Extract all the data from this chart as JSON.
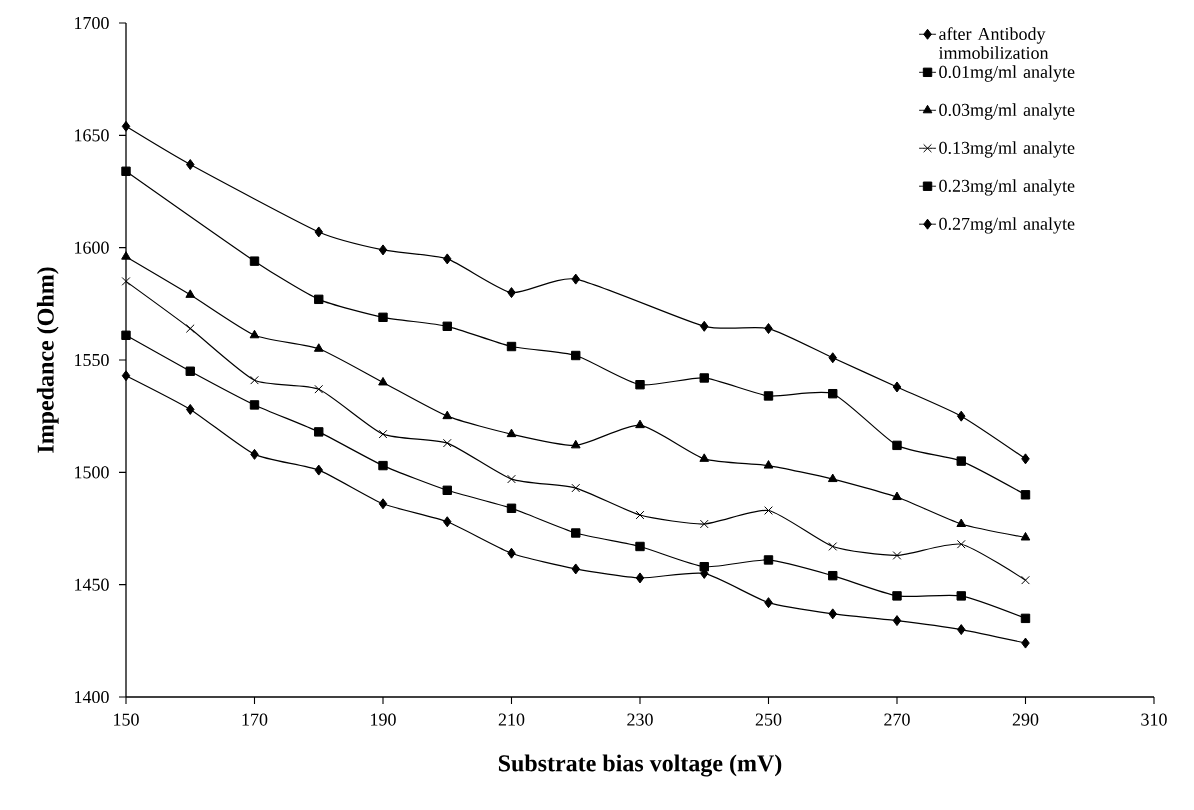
{
  "chart_data": {
    "type": "line",
    "xlabel": "Substrate bias voltage (mV)",
    "ylabel": "Impedance (Ohm)",
    "xlim": [
      150,
      310
    ],
    "xticks": [
      150,
      170,
      190,
      210,
      230,
      250,
      270,
      290,
      310
    ],
    "ylim": [
      1400,
      1700
    ],
    "yticks": [
      1400,
      1450,
      1500,
      1550,
      1600,
      1650,
      1700
    ],
    "grid": false,
    "legend": "top right",
    "line_style": "solid",
    "series": [
      {
        "name": "after Antibody immobilization",
        "color": "#000000",
        "marker": "diamond",
        "x": [
          150,
          160,
          180,
          190,
          200,
          210,
          220,
          240,
          250,
          260,
          270,
          280,
          290
        ],
        "values": [
          1654,
          1637,
          1607,
          1599,
          1595,
          1580,
          1586,
          1565,
          1564,
          1551,
          1538,
          1525,
          1506
        ]
      },
      {
        "name": "0.01mg/ml analyte",
        "color": "#000000",
        "marker": "square",
        "x": [
          150,
          170,
          180,
          190,
          200,
          210,
          220,
          230,
          240,
          250,
          260,
          270,
          280,
          290
        ],
        "values": [
          1634,
          1594,
          1577,
          1569,
          1565,
          1556,
          1552,
          1539,
          1542,
          1534,
          1535,
          1512,
          1505,
          1490
        ]
      },
      {
        "name": "0.03mg/ml analyte",
        "color": "#000000",
        "marker": "triangle",
        "x": [
          150,
          160,
          170,
          180,
          190,
          200,
          210,
          220,
          230,
          240,
          250,
          260,
          270,
          280,
          290
        ],
        "values": [
          1596,
          1579,
          1561,
          1555,
          1540,
          1525,
          1517,
          1512,
          1521,
          1506,
          1503,
          1497,
          1489,
          1477,
          1471
        ]
      },
      {
        "name": "0.13mg/ml analyte",
        "color": "#000000",
        "marker": "cross",
        "x": [
          150,
          160,
          170,
          180,
          190,
          200,
          210,
          220,
          230,
          240,
          250,
          260,
          270,
          280,
          290
        ],
        "values": [
          1585,
          1564,
          1541,
          1537,
          1517,
          1513,
          1497,
          1493,
          1481,
          1477,
          1483,
          1467,
          1463,
          1468,
          1452
        ]
      },
      {
        "name": "0.23mg/ml analyte",
        "color": "#000000",
        "marker": "square",
        "x": [
          150,
          160,
          170,
          180,
          190,
          200,
          210,
          220,
          230,
          240,
          250,
          260,
          270,
          280,
          290
        ],
        "values": [
          1561,
          1545,
          1530,
          1518,
          1503,
          1492,
          1484,
          1473,
          1467,
          1458,
          1461,
          1454,
          1445,
          1445,
          1435
        ]
      },
      {
        "name": "0.27mg/ml analyte",
        "color": "#000000",
        "marker": "diamond",
        "x": [
          150,
          160,
          170,
          180,
          190,
          200,
          210,
          220,
          230,
          240,
          250,
          260,
          270,
          280,
          290
        ],
        "values": [
          1543,
          1528,
          1508,
          1501,
          1486,
          1478,
          1464,
          1457,
          1453,
          1455,
          1442,
          1437,
          1434,
          1430,
          1424
        ]
      }
    ]
  }
}
